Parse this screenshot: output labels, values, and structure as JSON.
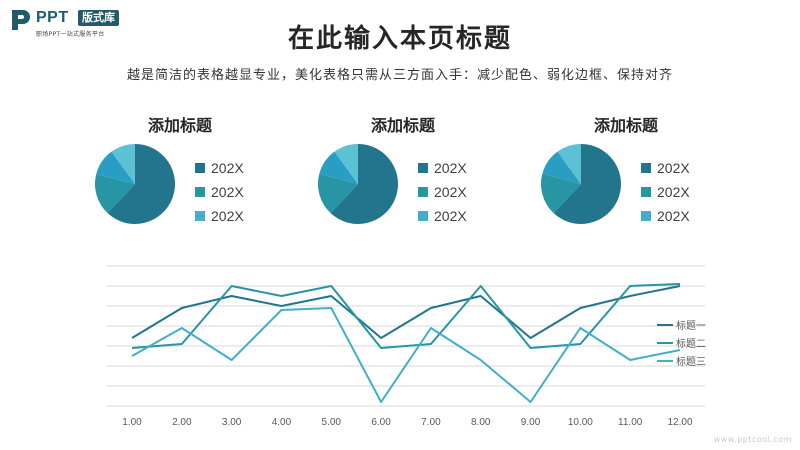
{
  "logo": {
    "text": "PPT",
    "badge": "版式库",
    "sub": "职场PPT一站式服务平台"
  },
  "title": "在此输入本页标题",
  "subtitle": "越是简洁的表格越显专业，美化表格只需从三方面入手：减少配色、弱化边框、保持对齐",
  "watermark": "www.pptcool.com",
  "colors": {
    "series1": "#22758c",
    "series2": "#2795a3",
    "series3": "#42aec9",
    "grid": "#d9d9d9",
    "axis_text": "#595959"
  },
  "chart_data": [
    {
      "type": "pie",
      "title": "添加标题",
      "slices": [
        {
          "label": "202X",
          "value": 62,
          "color": "#22758c"
        },
        {
          "label": "202X",
          "value": 17,
          "color": "#2795a3"
        },
        {
          "label": "202X",
          "value": 11,
          "color": "#2a9dc4"
        },
        {
          "label": "",
          "value": 10,
          "color": "#5dc1d6"
        }
      ],
      "legend": [
        "202X",
        "202X",
        "202X"
      ],
      "legend_colors": [
        "#22758c",
        "#2795a3",
        "#42aec9"
      ]
    },
    {
      "type": "pie",
      "title": "添加标题",
      "slices": [
        {
          "label": "202X",
          "value": 62,
          "color": "#22758c"
        },
        {
          "label": "202X",
          "value": 17,
          "color": "#2795a3"
        },
        {
          "label": "202X",
          "value": 11,
          "color": "#2a9dc4"
        },
        {
          "label": "",
          "value": 10,
          "color": "#5dc1d6"
        }
      ],
      "legend": [
        "202X",
        "202X",
        "202X"
      ],
      "legend_colors": [
        "#22758c",
        "#2795a3",
        "#42aec9"
      ]
    },
    {
      "type": "pie",
      "title": "添加标题",
      "slices": [
        {
          "label": "202X",
          "value": 62,
          "color": "#22758c"
        },
        {
          "label": "202X",
          "value": 17,
          "color": "#2795a3"
        },
        {
          "label": "202X",
          "value": 11,
          "color": "#2a9dc4"
        },
        {
          "label": "",
          "value": 10,
          "color": "#5dc1d6"
        }
      ],
      "legend": [
        "202X",
        "202X",
        "202X"
      ],
      "legend_colors": [
        "#22758c",
        "#2795a3",
        "#42aec9"
      ]
    },
    {
      "type": "line",
      "categories": [
        "1.00",
        "2.00",
        "3.00",
        "4.00",
        "5.00",
        "6.00",
        "7.00",
        "8.00",
        "9.00",
        "10.00",
        "11.00",
        "12.00"
      ],
      "ylim": [
        0,
        7
      ],
      "grid": true,
      "legend_position": "right",
      "series": [
        {
          "name": "标题一",
          "values": [
            3.4,
            4.9,
            5.5,
            5.0,
            5.5,
            3.4,
            4.9,
            5.5,
            3.4,
            4.9,
            5.5,
            6.0
          ],
          "color": "#22758c"
        },
        {
          "name": "标题二",
          "values": [
            2.9,
            3.1,
            6.0,
            5.5,
            6.0,
            2.9,
            3.1,
            6.0,
            2.9,
            3.1,
            6.0,
            6.1
          ],
          "color": "#2795a3"
        },
        {
          "name": "标题三",
          "values": [
            2.5,
            3.9,
            2.3,
            4.8,
            4.9,
            0.2,
            3.9,
            2.3,
            0.2,
            3.9,
            2.3,
            2.8
          ],
          "color": "#42aec9"
        }
      ]
    }
  ]
}
